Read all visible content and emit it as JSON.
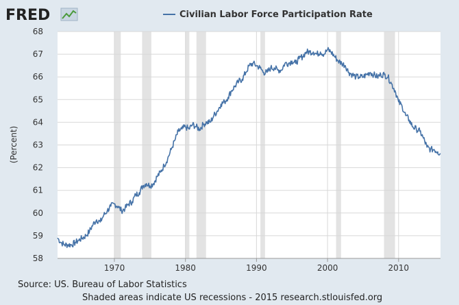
{
  "brand": {
    "logo": "FRED",
    "logo_icon": "line-chart-icon"
  },
  "chart_data": {
    "type": "line",
    "title": "",
    "ylabel": "(Percent)",
    "xlabel": "",
    "xlim": [
      1962.0,
      2015.9
    ],
    "ylim": [
      58,
      68
    ],
    "yticks": [
      58,
      59,
      60,
      61,
      62,
      63,
      64,
      65,
      66,
      67,
      68
    ],
    "xticks": [
      1970,
      1980,
      1990,
      2000,
      2010
    ],
    "grid": true,
    "legend": "top-center",
    "series": [
      {
        "name": "Civilian Labor Force Participation Rate",
        "color": "#4572a7",
        "x": [
          1962.0,
          1962.5,
          1963.0,
          1963.5,
          1964.0,
          1964.5,
          1965.0,
          1965.5,
          1966.0,
          1966.5,
          1967.0,
          1967.5,
          1968.0,
          1968.5,
          1969.0,
          1969.5,
          1970.0,
          1970.5,
          1971.0,
          1971.5,
          1972.0,
          1972.5,
          1973.0,
          1973.5,
          1974.0,
          1974.5,
          1975.0,
          1975.5,
          1976.0,
          1976.5,
          1977.0,
          1977.5,
          1978.0,
          1978.5,
          1979.0,
          1979.5,
          1980.0,
          1980.5,
          1981.0,
          1981.5,
          1982.0,
          1982.5,
          1983.0,
          1983.5,
          1984.0,
          1984.5,
          1985.0,
          1985.5,
          1986.0,
          1986.5,
          1987.0,
          1987.5,
          1988.0,
          1988.5,
          1989.0,
          1989.5,
          1990.0,
          1990.5,
          1991.0,
          1991.5,
          1992.0,
          1992.5,
          1993.0,
          1993.5,
          1994.0,
          1994.5,
          1995.0,
          1995.5,
          1996.0,
          1996.5,
          1997.0,
          1997.5,
          1998.0,
          1998.5,
          1999.0,
          1999.5,
          2000.0,
          2000.5,
          2001.0,
          2001.5,
          2002.0,
          2002.5,
          2003.0,
          2003.5,
          2004.0,
          2004.5,
          2005.0,
          2005.5,
          2006.0,
          2006.5,
          2007.0,
          2007.5,
          2008.0,
          2008.5,
          2009.0,
          2009.5,
          2010.0,
          2010.5,
          2011.0,
          2011.5,
          2012.0,
          2012.5,
          2013.0,
          2013.5,
          2014.0,
          2014.5,
          2015.0,
          2015.5,
          2015.9
        ],
        "values": [
          58.9,
          58.7,
          58.6,
          58.6,
          58.6,
          58.7,
          58.8,
          58.9,
          59.0,
          59.2,
          59.5,
          59.7,
          59.6,
          59.9,
          60.1,
          60.3,
          60.4,
          60.3,
          60.1,
          60.2,
          60.4,
          60.5,
          60.8,
          60.9,
          61.2,
          61.3,
          61.2,
          61.3,
          61.6,
          61.8,
          62.1,
          62.4,
          62.8,
          63.2,
          63.6,
          63.7,
          63.8,
          63.7,
          63.9,
          63.8,
          63.7,
          63.9,
          64.0,
          64.0,
          64.3,
          64.5,
          64.8,
          64.9,
          65.1,
          65.4,
          65.6,
          65.8,
          65.9,
          66.2,
          66.5,
          66.6,
          66.5,
          66.4,
          66.2,
          66.2,
          66.4,
          66.4,
          66.3,
          66.3,
          66.6,
          66.6,
          66.7,
          66.6,
          66.8,
          66.9,
          67.1,
          67.1,
          67.1,
          67.0,
          67.1,
          67.0,
          67.2,
          67.1,
          66.9,
          66.7,
          66.6,
          66.5,
          66.2,
          66.1,
          66.0,
          66.0,
          66.0,
          66.1,
          66.2,
          66.1,
          66.0,
          66.1,
          66.1,
          66.0,
          65.7,
          65.4,
          64.9,
          64.7,
          64.3,
          64.1,
          63.8,
          63.7,
          63.6,
          63.3,
          62.9,
          62.8,
          62.8,
          62.7,
          62.6
        ]
      }
    ],
    "recessions": [
      [
        1969.95,
        1970.9
      ],
      [
        1973.9,
        1975.2
      ],
      [
        1980.0,
        1980.55
      ],
      [
        1981.55,
        1982.9
      ],
      [
        1990.55,
        1991.2
      ],
      [
        2001.2,
        2001.9
      ],
      [
        2007.95,
        2009.5
      ]
    ]
  },
  "footer": {
    "source": "Source: US. Bureau of Labor Statistics",
    "note": "Shaded areas indicate US recessions - 2015 research.stlouisfed.org"
  }
}
